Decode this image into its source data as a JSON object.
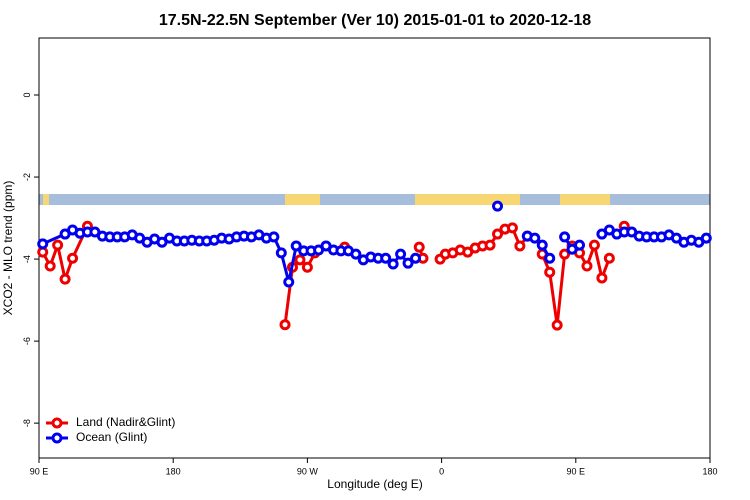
{
  "chart_data": {
    "type": "line",
    "title": "17.5N-22.5N September (Ver 10)   2015-01-01 to 2020-12-18",
    "xlabel": "Longitude (deg E)",
    "ylabel": "XCO2 - MLO trend (ppm)",
    "xlim": [
      90,
      540
    ],
    "xticks": [
      {
        "value": 90,
        "label": "90 E"
      },
      {
        "value": 180,
        "label": "180"
      },
      {
        "value": 270,
        "label": "90 W"
      },
      {
        "value": 360,
        "label": "0"
      },
      {
        "value": 450,
        "label": "90 E"
      },
      {
        "value": 540,
        "label": "180"
      }
    ],
    "ylim": [
      -8.85,
      1.39
    ],
    "yticks": [
      -8,
      -6,
      -4,
      -2,
      0
    ],
    "legend": "bottom-left",
    "series": [
      {
        "name": "Land (Nadir&Glint)",
        "color": "#ee0000",
        "x": [
          92.5,
          97.5,
          102.5,
          107.5,
          112.5,
          122.5,
          127.5,
          255,
          260,
          265,
          270,
          275,
          285,
          295,
          320,
          345,
          347.5,
          352.5,
          359,
          362.5,
          367.5,
          372.5,
          377.5,
          382.5,
          387.5,
          392.5,
          397.5,
          402.5,
          407.5,
          412.5,
          417.5,
          422.5,
          427.5,
          432.5,
          437.5,
          442.5,
          447.5,
          452.5,
          457.5,
          462.5,
          467.5,
          472.5,
          477.5,
          482.5
        ],
        "values": [
          -3.83,
          -4.17,
          -3.66,
          -4.49,
          -3.98,
          -3.2,
          null,
          -5.6,
          -4.2,
          -4.02,
          -4.2,
          -3.85,
          null,
          -3.71,
          null,
          -3.71,
          -3.98,
          null,
          -4.0,
          -3.88,
          -3.85,
          -3.78,
          -3.83,
          -3.73,
          -3.68,
          -3.66,
          -3.39,
          -3.27,
          -3.24,
          -3.68,
          -3.44,
          null,
          -3.88,
          -4.32,
          -5.61,
          -3.88,
          -3.68,
          -3.85,
          -4.17,
          -3.66,
          -4.46,
          -3.98,
          null,
          -3.2
        ]
      },
      {
        "name": "Ocean (Glint)",
        "color": "#0000ee",
        "x": [
          92.5,
          107.5,
          112.5,
          117.5,
          122.5,
          127.5,
          132.5,
          137.5,
          142.5,
          147.5,
          152.5,
          157.5,
          162.5,
          167.5,
          172.5,
          177.5,
          182.5,
          187.5,
          192.5,
          197.5,
          202.5,
          207.5,
          212.5,
          217.5,
          222.5,
          227.5,
          232.5,
          237.5,
          242.5,
          247.5,
          252.5,
          257.5,
          262.5,
          267.5,
          272.5,
          277.5,
          282.5,
          287.5,
          292.5,
          297.5,
          302.5,
          307.5,
          312.5,
          317.5,
          322.5,
          327.5,
          332.5,
          337.5,
          342.5,
          370,
          397.5,
          410,
          417.5,
          422.5,
          427.5,
          432.5,
          437.5,
          442.5,
          447.5,
          452.5,
          460,
          467.5,
          472.5,
          477.5,
          482.5,
          487.5,
          492.5,
          497.5,
          502.5,
          507.5,
          512.5,
          517.5,
          522.5,
          527.5,
          532.5,
          537.5
        ],
        "values": [
          -3.63,
          -3.39,
          -3.29,
          -3.37,
          -3.34,
          -3.34,
          -3.44,
          -3.46,
          -3.46,
          -3.46,
          -3.41,
          -3.49,
          -3.59,
          -3.51,
          -3.59,
          -3.49,
          -3.56,
          -3.56,
          -3.54,
          -3.56,
          -3.56,
          -3.54,
          -3.49,
          -3.51,
          -3.46,
          -3.44,
          -3.46,
          -3.41,
          -3.49,
          -3.46,
          -3.85,
          -4.56,
          -3.68,
          -3.8,
          -3.8,
          -3.78,
          -3.68,
          -3.78,
          -3.8,
          -3.8,
          -3.88,
          -4.02,
          -3.95,
          -3.98,
          -3.98,
          -4.12,
          -3.88,
          -4.1,
          -3.98,
          null,
          -2.71,
          null,
          -3.44,
          -3.49,
          -3.66,
          -3.98,
          null,
          -3.46,
          -3.76,
          -3.66,
          null,
          -3.39,
          -3.29,
          -3.39,
          -3.34,
          -3.34,
          -3.44,
          -3.46,
          -3.46,
          -3.46,
          -3.41,
          -3.49,
          -3.59,
          -3.54,
          -3.59,
          -3.49
        ]
      }
    ]
  }
}
